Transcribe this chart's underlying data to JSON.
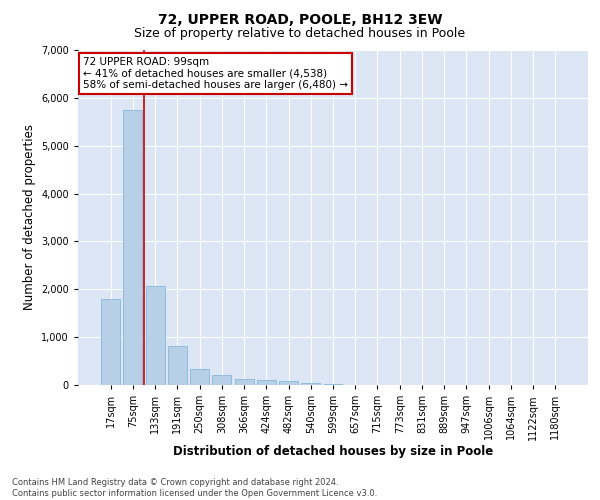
{
  "title1": "72, UPPER ROAD, POOLE, BH12 3EW",
  "title2": "Size of property relative to detached houses in Poole",
  "xlabel": "Distribution of detached houses by size in Poole",
  "ylabel": "Number of detached properties",
  "bar_labels": [
    "17sqm",
    "75sqm",
    "133sqm",
    "191sqm",
    "250sqm",
    "308sqm",
    "366sqm",
    "424sqm",
    "482sqm",
    "540sqm",
    "599sqm",
    "657sqm",
    "715sqm",
    "773sqm",
    "831sqm",
    "889sqm",
    "947sqm",
    "1006sqm",
    "1064sqm",
    "1122sqm",
    "1180sqm"
  ],
  "bar_values": [
    1800,
    5750,
    2060,
    820,
    330,
    200,
    130,
    110,
    80,
    50,
    30,
    0,
    0,
    0,
    0,
    0,
    0,
    0,
    0,
    0,
    0
  ],
  "bar_color": "#b8cfe8",
  "bar_edge_color": "#7aafd4",
  "background_color": "#dce6f5",
  "grid_color": "#ffffff",
  "vline_x": 1.5,
  "vline_color": "#cc0000",
  "annotation_text": "72 UPPER ROAD: 99sqm\n← 41% of detached houses are smaller (4,538)\n58% of semi-detached houses are larger (6,480) →",
  "annotation_box_color": "#ffffff",
  "annotation_box_edge": "#cc0000",
  "ylim": [
    0,
    7000
  ],
  "yticks": [
    0,
    1000,
    2000,
    3000,
    4000,
    5000,
    6000,
    7000
  ],
  "footnote": "Contains HM Land Registry data © Crown copyright and database right 2024.\nContains public sector information licensed under the Open Government Licence v3.0.",
  "title1_fontsize": 10,
  "title2_fontsize": 9,
  "xlabel_fontsize": 8.5,
  "ylabel_fontsize": 8.5,
  "tick_fontsize": 7,
  "annot_fontsize": 7.5
}
